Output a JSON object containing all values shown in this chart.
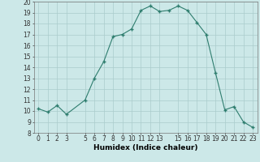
{
  "x": [
    0,
    1,
    2,
    3,
    5,
    6,
    7,
    8,
    9,
    10,
    11,
    12,
    13,
    14,
    15,
    16,
    17,
    18,
    19,
    20,
    21,
    22,
    23
  ],
  "y": [
    10.2,
    9.9,
    10.5,
    9.7,
    11.0,
    13.0,
    14.5,
    16.8,
    17.0,
    17.5,
    19.2,
    19.6,
    19.1,
    19.2,
    19.6,
    19.2,
    18.1,
    17.0,
    13.5,
    10.1,
    10.4,
    9.0,
    8.5
  ],
  "xlabel": "Humidex (Indice chaleur)",
  "ylim": [
    8,
    20
  ],
  "xlim": [
    -0.5,
    23.5
  ],
  "yticks": [
    8,
    9,
    10,
    11,
    12,
    13,
    14,
    15,
    16,
    17,
    18,
    19,
    20
  ],
  "xticks": [
    0,
    1,
    2,
    3,
    5,
    6,
    7,
    8,
    9,
    10,
    11,
    12,
    13,
    15,
    16,
    17,
    18,
    19,
    20,
    21,
    22,
    23
  ],
  "line_color": "#2e7d6e",
  "marker_color": "#2e7d6e",
  "bg_color": "#cce8e8",
  "grid_color": "#aacccc",
  "axis_label_fontsize": 6.5,
  "tick_fontsize": 5.5
}
